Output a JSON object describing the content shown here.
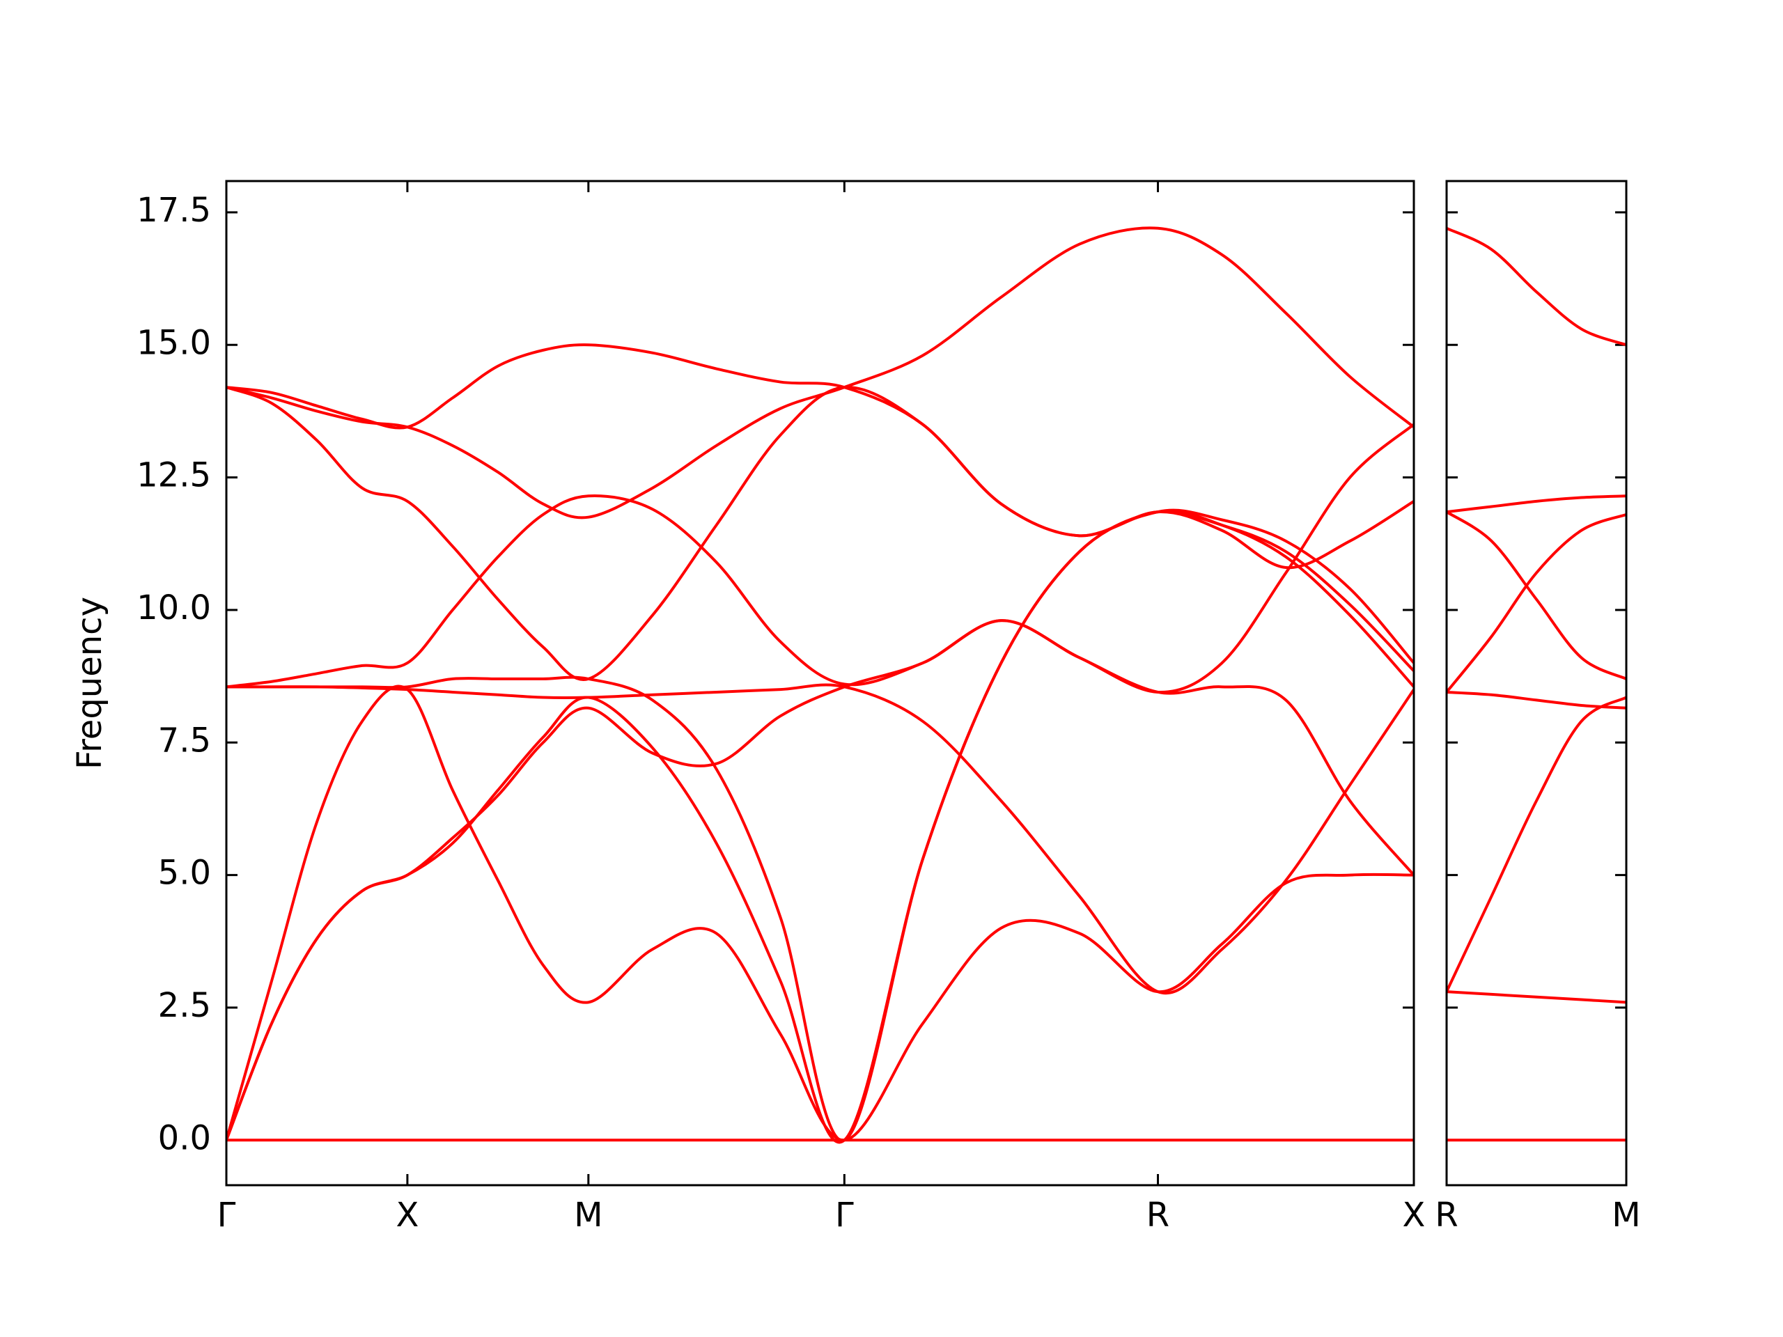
{
  "chart_data": [
    {
      "type": "line",
      "ylabel": "Frequency",
      "x": [
        0,
        0.25,
        0.5,
        0.75,
        1,
        1.25,
        1.5,
        1.75,
        2,
        2.354,
        2.707,
        3.061,
        3.414,
        3.847,
        4.28,
        4.713,
        5.146,
        5.5,
        5.853,
        6.207,
        6.56
      ],
      "xlim": [
        0,
        6.56
      ],
      "xticks": [
        {
          "value": 0,
          "label": "Γ"
        },
        {
          "value": 1,
          "label": "X"
        },
        {
          "value": 2,
          "label": "M"
        },
        {
          "value": 3.414,
          "label": "Γ"
        },
        {
          "value": 5.146,
          "label": "R"
        },
        {
          "value": 6.56,
          "label": "X"
        }
      ],
      "ylim": [
        -0.85,
        18.09
      ],
      "yticks": [
        {
          "value": 0,
          "label": "0.0"
        },
        2.5,
        {
          "value": 5,
          "label": "5.0"
        },
        7.5,
        {
          "value": 10,
          "label": "10.0"
        },
        12.5,
        {
          "value": 15,
          "label": "15.0"
        },
        17.5
      ],
      "series": [
        {
          "color": "#ff0000",
          "values": [
            0,
            0,
            0,
            0,
            0,
            0,
            0,
            0,
            0,
            0,
            0,
            0,
            0,
            0,
            0,
            0,
            0,
            0,
            0,
            0,
            0
          ]
        },
        {
          "color": "#ff0000",
          "values": [
            0,
            2.2,
            3.8,
            4.7,
            5.0,
            5.7,
            6.5,
            7.5,
            8.15,
            7.3,
            7.1,
            8.0,
            8.55,
            9.0,
            9.8,
            9.1,
            8.45,
            8.55,
            8.3,
            6.4,
            5.0
          ]
        },
        {
          "color": "#ff0000",
          "values": [
            0,
            3.0,
            6.0,
            7.9,
            8.5,
            6.6,
            4.9,
            3.3,
            2.6,
            3.6,
            3.9,
            2.0,
            0,
            2.2,
            4.0,
            3.9,
            2.8,
            3.7,
            4.85,
            5.0,
            5.0
          ]
        },
        {
          "color": "#ff0000",
          "values": [
            0,
            2.2,
            3.8,
            4.7,
            5.0,
            5.6,
            6.6,
            7.6,
            8.35,
            7.4,
            5.6,
            3.0,
            0,
            5.3,
            9.0,
            11.1,
            11.85,
            11.6,
            11.0,
            9.9,
            8.55
          ]
        },
        {
          "color": "#ff0000",
          "values": [
            8.55,
            8.55,
            8.55,
            8.55,
            8.55,
            8.7,
            8.7,
            8.7,
            8.7,
            8.3,
            7.0,
            4.2,
            0,
            5.3,
            9.0,
            11.1,
            11.85,
            11.7,
            11.3,
            10.4,
            9.0
          ]
        },
        {
          "color": "#ff0000",
          "values": [
            8.55,
            8.55,
            8.55,
            8.53,
            8.5,
            8.45,
            8.4,
            8.35,
            8.35,
            8.4,
            8.45,
            8.5,
            8.55,
            7.9,
            6.4,
            4.6,
            2.8,
            3.6,
            4.9,
            6.7,
            8.5
          ]
        },
        {
          "color": "#ff0000",
          "values": [
            8.55,
            8.65,
            8.8,
            8.95,
            9.0,
            10.0,
            11.0,
            11.8,
            12.15,
            11.9,
            10.9,
            9.4,
            8.6,
            9.0,
            9.8,
            9.1,
            8.45,
            9.0,
            10.7,
            12.5,
            13.5
          ]
        },
        {
          "color": "#ff0000",
          "values": [
            14.2,
            13.9,
            13.2,
            12.3,
            12.05,
            11.2,
            10.2,
            9.3,
            8.7,
            9.9,
            11.6,
            13.3,
            14.2,
            13.5,
            12.0,
            11.4,
            11.85,
            11.5,
            10.8,
            11.3,
            12.05
          ]
        },
        {
          "color": "#ff0000",
          "values": [
            14.2,
            14.0,
            13.75,
            13.55,
            13.45,
            13.1,
            12.6,
            12.0,
            11.75,
            12.3,
            13.1,
            13.8,
            14.2,
            14.8,
            15.9,
            16.9,
            17.2,
            16.7,
            15.6,
            14.4,
            13.45
          ]
        },
        {
          "color": "#ff0000",
          "values": [
            14.2,
            14.1,
            13.85,
            13.6,
            13.45,
            14.0,
            14.6,
            14.9,
            15.0,
            14.85,
            14.55,
            14.3,
            14.2,
            13.5,
            12.0,
            11.4,
            11.85,
            11.6,
            11.1,
            10.1,
            8.85
          ]
        }
      ]
    },
    {
      "type": "line",
      "x": [
        0,
        0.25,
        0.5,
        0.75,
        1
      ],
      "xlim": [
        0,
        1
      ],
      "xticks": [
        {
          "value": 0,
          "label": "R"
        },
        {
          "value": 1,
          "label": "M"
        }
      ],
      "ylim": [
        -0.85,
        18.09
      ],
      "series": [
        {
          "color": "#ff0000",
          "values": [
            0,
            0,
            0,
            0,
            0
          ]
        },
        {
          "color": "#ff0000",
          "values": [
            2.8,
            2.75,
            2.7,
            2.65,
            2.6
          ]
        },
        {
          "color": "#ff0000",
          "values": [
            2.8,
            4.6,
            6.4,
            7.9,
            8.35
          ]
        },
        {
          "color": "#ff0000",
          "values": [
            8.45,
            8.4,
            8.3,
            8.2,
            8.15
          ]
        },
        {
          "color": "#ff0000",
          "values": [
            8.45,
            9.5,
            10.7,
            11.5,
            11.8
          ]
        },
        {
          "color": "#ff0000",
          "values": [
            11.85,
            11.3,
            10.2,
            9.1,
            8.7
          ]
        },
        {
          "color": "#ff0000",
          "values": [
            11.85,
            11.95,
            12.05,
            12.12,
            12.15
          ]
        },
        {
          "color": "#ff0000",
          "values": [
            17.2,
            16.8,
            16.0,
            15.3,
            15.0
          ]
        }
      ]
    }
  ]
}
